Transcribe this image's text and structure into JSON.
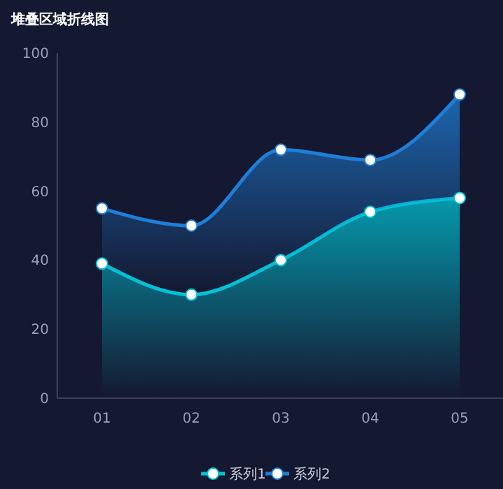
{
  "chart_data": {
    "type": "area",
    "title": "堆叠区域折线图",
    "categories": [
      "01",
      "02",
      "03",
      "04",
      "05"
    ],
    "series": [
      {
        "name": "系列1",
        "color": "#00c4d6",
        "values": [
          39,
          30,
          40,
          54,
          58
        ]
      },
      {
        "name": "系列2",
        "color": "#1f7fd8",
        "values": [
          16,
          20,
          32,
          15,
          30
        ]
      }
    ],
    "stacked": true,
    "ylim": [
      0,
      100
    ],
    "yticks": [
      0,
      20,
      40,
      60,
      80,
      100
    ],
    "grid": false,
    "legend": "bottom",
    "marker": "circle",
    "line_style": "solid"
  }
}
